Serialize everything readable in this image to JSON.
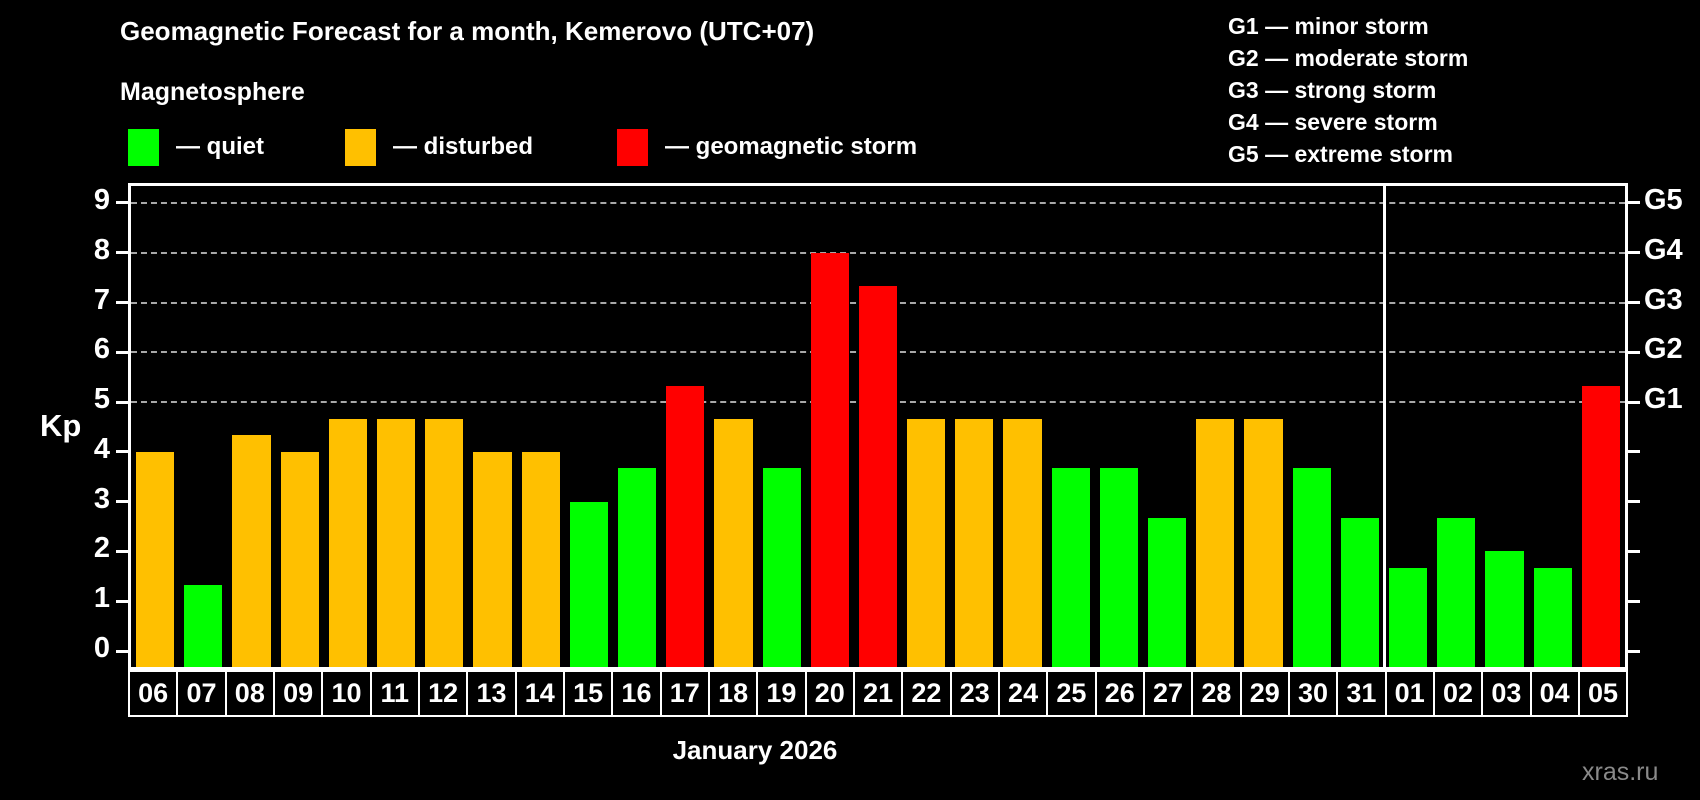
{
  "header": {
    "title": "Geomagnetic Forecast for a month, Kemerovo (UTC+07)",
    "subtitle": "Magnetosphere"
  },
  "legend": {
    "items": [
      {
        "name": "quiet",
        "label": "— quiet",
        "color": "#00ff00"
      },
      {
        "name": "disturbed",
        "label": "— disturbed",
        "color": "#ffc000"
      },
      {
        "name": "storm",
        "label": "— geomagnetic storm",
        "color": "#ff0000"
      }
    ]
  },
  "storm_scale_legend": {
    "lines": [
      "G1 — minor storm",
      "G2 — moderate storm",
      "G3 — strong storm",
      "G4 — severe storm",
      "G5 — extreme storm"
    ]
  },
  "watermark": "xras.ru",
  "chart_data": {
    "type": "bar",
    "title": "Geomagnetic Forecast for a month, Kemerovo (UTC+07)",
    "ylabel": "Kp",
    "xlabel": "January 2026",
    "ylim": [
      0,
      9
    ],
    "y_ticks": [
      0,
      1,
      2,
      3,
      4,
      5,
      6,
      7,
      8,
      9
    ],
    "gridlines_at": [
      5,
      6,
      7,
      8,
      9
    ],
    "grid": true,
    "right_axis": {
      "labels": [
        "G1",
        "G2",
        "G3",
        "G4",
        "G5"
      ],
      "at_kp": [
        5,
        6,
        7,
        8,
        9
      ]
    },
    "categories": [
      "06",
      "07",
      "08",
      "09",
      "10",
      "11",
      "12",
      "13",
      "14",
      "15",
      "16",
      "17",
      "18",
      "19",
      "20",
      "21",
      "22",
      "23",
      "24",
      "25",
      "26",
      "27",
      "28",
      "29",
      "30",
      "31",
      "01",
      "02",
      "03",
      "04",
      "05"
    ],
    "values": [
      4.0,
      1.33,
      4.33,
      4.0,
      4.67,
      4.67,
      4.67,
      4.0,
      4.0,
      3.0,
      3.67,
      5.33,
      4.67,
      3.67,
      8.0,
      7.33,
      4.67,
      4.67,
      4.67,
      3.67,
      3.67,
      2.67,
      4.67,
      4.67,
      3.67,
      2.67,
      1.67,
      2.67,
      2.0,
      1.67,
      5.33
    ],
    "statuses": [
      "disturbed",
      "quiet",
      "disturbed",
      "disturbed",
      "disturbed",
      "disturbed",
      "disturbed",
      "disturbed",
      "disturbed",
      "quiet",
      "quiet",
      "storm",
      "disturbed",
      "quiet",
      "storm",
      "storm",
      "disturbed",
      "disturbed",
      "disturbed",
      "quiet",
      "quiet",
      "quiet",
      "disturbed",
      "disturbed",
      "quiet",
      "quiet",
      "quiet",
      "quiet",
      "quiet",
      "quiet",
      "storm"
    ],
    "colors": {
      "quiet": "#00ff00",
      "disturbed": "#ffc000",
      "storm": "#ff0000"
    },
    "month_separator_after_index": 25,
    "legend_position": "top"
  }
}
